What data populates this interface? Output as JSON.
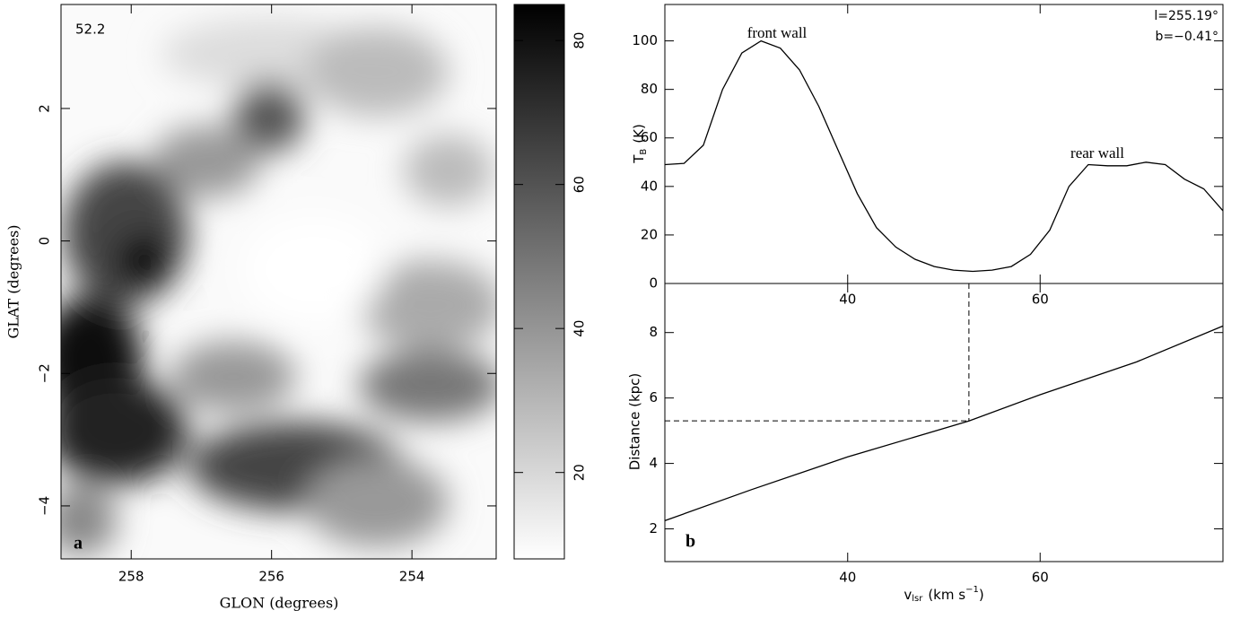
{
  "chart_data": [
    {
      "type": "image",
      "annotation": "52.2",
      "panel_label": "a",
      "xlabel": "GLON (degrees)",
      "ylabel": "GLAT (degrees)",
      "xlim": [
        259,
        252.8
      ],
      "xticks": [
        258,
        256,
        254
      ],
      "ylim": [
        -4.8,
        3.57
      ],
      "yticks": [
        2,
        0,
        {
          "value": -2,
          "label": "−2"
        },
        {
          "value": -4,
          "label": "−4"
        }
      ],
      "colorbar": {
        "lim": [
          8,
          85
        ],
        "ticks": [
          20,
          40,
          60,
          80
        ]
      }
    },
    {
      "type": "line",
      "x": [
        21,
        23,
        25,
        27,
        29,
        31,
        33,
        35,
        37,
        39,
        41,
        43,
        45,
        47,
        49,
        51,
        53,
        55,
        57,
        59,
        61,
        63,
        65,
        67,
        69,
        71,
        73,
        75,
        77,
        79
      ],
      "values": [
        49,
        49.5,
        57,
        80,
        95,
        100,
        97,
        88,
        73,
        55,
        37,
        23,
        15,
        10,
        7,
        5.5,
        5,
        5.5,
        7,
        12,
        22,
        40,
        49,
        48.5,
        48.5,
        50,
        49,
        43,
        39,
        30
      ],
      "xlim": [
        21,
        79
      ],
      "xticks": [
        40,
        60
      ],
      "ylim": [
        0,
        115
      ],
      "yticks": [
        0,
        20,
        40,
        60,
        80,
        100
      ],
      "ylabel": {
        "text": "T",
        "sub": "B",
        "unit": "(K)"
      },
      "annotations": [
        "front wall",
        "rear wall",
        "l=255.19°",
        "b=−0.41°"
      ]
    },
    {
      "type": "line",
      "x": [
        21,
        30,
        40,
        52.6,
        60,
        70,
        79
      ],
      "values": [
        2.25,
        3.2,
        4.2,
        5.3,
        6.1,
        7.1,
        8.2
      ],
      "xlim": [
        21,
        79
      ],
      "xticks": [
        40,
        60
      ],
      "ylim": [
        1,
        9.5
      ],
      "yticks": [
        2,
        4,
        6,
        8
      ],
      "panel_label": "b",
      "ylabel": "Distance (kpc)",
      "xlabel": {
        "text": "v",
        "sub": "lsr",
        "unit": "(km s",
        "exp": "−1",
        "tail": ")"
      },
      "marker": {
        "v": 52.6,
        "distance": 5.3
      }
    }
  ]
}
